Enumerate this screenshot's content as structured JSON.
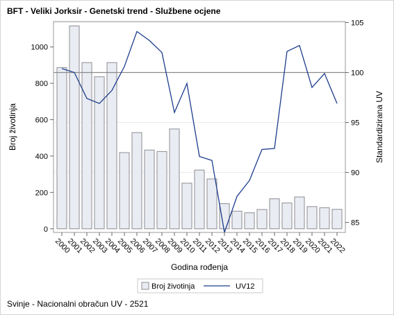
{
  "title": "BFT - Veliki Jorksir - Genetski trend - Službene ocjene",
  "footnote": "Svinje - Nacionalni obračun UV - 2521",
  "colors": {
    "bar_fill": "#e9ecf2",
    "bar_stroke": "#8d8d93",
    "line": "#1b3c8c",
    "reference_line": "#8a8a8a",
    "grid": "#ececec"
  },
  "chart_data": {
    "type": "bar",
    "xlabel": "Godina rođenja",
    "ylabel": "Broj životinja",
    "y2label": "Standardizirana UV",
    "ylim": [
      -20,
      1140
    ],
    "y2lim": [
      84,
      105.1
    ],
    "yticks": [
      0,
      200,
      400,
      600,
      800,
      1000
    ],
    "y2ticks": [
      85,
      90,
      95,
      100,
      105
    ],
    "reference_line_y2": 100,
    "grid": true,
    "legend_position": "bottom",
    "categories": [
      "2000",
      "2001",
      "2002",
      "2003",
      "2004",
      "2005",
      "2006",
      "2007",
      "2008",
      "2009",
      "2010",
      "2011",
      "2012",
      "2013",
      "2014",
      "2015",
      "2016",
      "2017",
      "2018",
      "2019",
      "2020",
      "2021",
      "2022"
    ],
    "series": [
      {
        "name": "Broj životinja",
        "type": "bar",
        "axis": "y",
        "values": [
          887,
          1116,
          914,
          836,
          914,
          419,
          529,
          433,
          425,
          549,
          251,
          323,
          274,
          138,
          97,
          88,
          106,
          165,
          142,
          175,
          122,
          116,
          107
        ]
      },
      {
        "name": "UV12",
        "type": "line",
        "axis": "y2",
        "values": [
          100.4,
          100.0,
          97.4,
          96.9,
          98.2,
          100.6,
          104.1,
          103.2,
          102.0,
          96.0,
          98.9,
          91.6,
          91.2,
          84.0,
          87.6,
          89.2,
          92.3,
          92.4,
          102.1,
          102.7,
          98.5,
          99.9,
          96.9
        ]
      }
    ]
  }
}
